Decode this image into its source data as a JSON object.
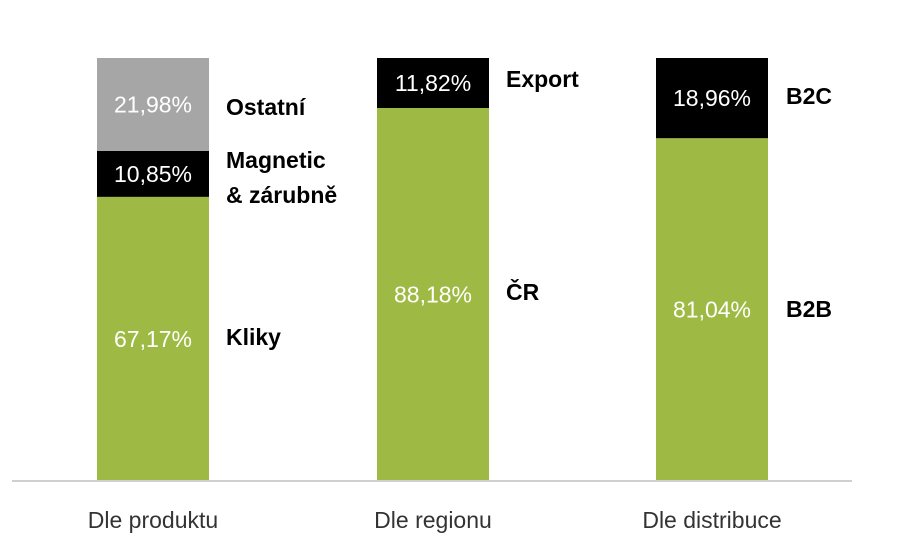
{
  "chart_data": {
    "type": "bar",
    "stacked": true,
    "percent": true,
    "categories": [
      "Dle produktu",
      "Dle regionu",
      "Dle distribuce"
    ],
    "ylim": [
      0,
      100
    ],
    "grid": false,
    "legend": "none",
    "title": "",
    "xlabel": "",
    "ylabel": "",
    "stacks": [
      {
        "category": "Dle produktu",
        "segments": [
          {
            "name": "Kliky",
            "value": 67.17,
            "label": "67,17%",
            "color": "#9fba44",
            "text_color": "#ffffff"
          },
          {
            "name": "Magnetic & zárubně",
            "name_lines": [
              "Magnetic",
              "& zárubně"
            ],
            "value": 10.85,
            "label": "10,85%",
            "color": "#000000",
            "text_color": "#ffffff"
          },
          {
            "name": "Ostatní",
            "value": 21.98,
            "label": "21,98%",
            "color": "#a6a6a6",
            "text_color": "#ffffff"
          }
        ]
      },
      {
        "category": "Dle regionu",
        "segments": [
          {
            "name": "ČR",
            "value": 88.18,
            "label": "88,18%",
            "color": "#9fba44",
            "text_color": "#ffffff"
          },
          {
            "name": "Export",
            "value": 11.82,
            "label": "11,82%",
            "color": "#000000",
            "text_color": "#ffffff"
          }
        ]
      },
      {
        "category": "Dle distribuce",
        "segments": [
          {
            "name": "B2B",
            "value": 81.04,
            "label": "81,04%",
            "color": "#9fba44",
            "text_color": "#ffffff"
          },
          {
            "name": "B2C",
            "value": 18.96,
            "label": "18,96%",
            "color": "#000000",
            "text_color": "#ffffff"
          }
        ]
      }
    ]
  },
  "colors": {
    "axis": "#d0d0d0",
    "category_text": "#333333"
  }
}
